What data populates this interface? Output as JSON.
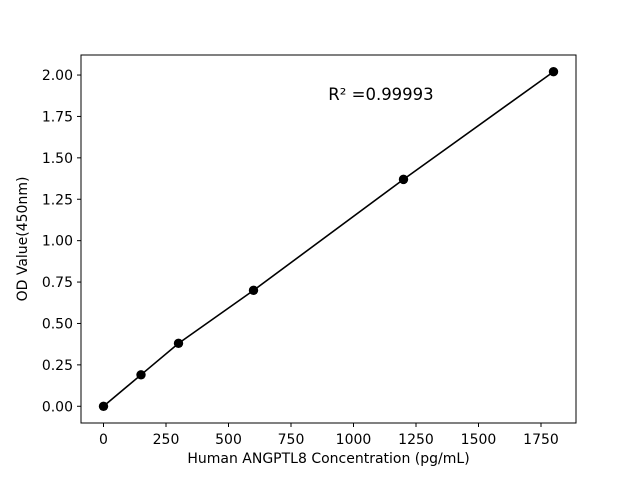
{
  "figure": {
    "background": "#ffffff"
  },
  "chart_data": {
    "type": "line",
    "title": "",
    "xlabel": "Human ANGPTL8 Concentration (pg/mL)",
    "ylabel": "OD Value(450nm)",
    "x": [
      0,
      150,
      300,
      600,
      1200,
      1800
    ],
    "y": [
      0.0,
      0.19,
      0.38,
      0.7,
      1.37,
      2.02
    ],
    "xlim": [
      -90,
      1890
    ],
    "ylim": [
      -0.101,
      2.121
    ],
    "xticks": [
      0,
      250,
      500,
      750,
      1000,
      1250,
      1500,
      1750
    ],
    "yticks": [
      0.0,
      0.25,
      0.5,
      0.75,
      1.0,
      1.25,
      1.5,
      1.75,
      2.0
    ],
    "ytick_decimals": 2,
    "grid": false,
    "legend": null,
    "line_color": "#000000",
    "marker_color": "#000000",
    "marker_radius": 4.7,
    "line_width": 1.6,
    "annotation": {
      "text": "R² =0.99993",
      "x": 1110,
      "y": 1.85
    }
  }
}
